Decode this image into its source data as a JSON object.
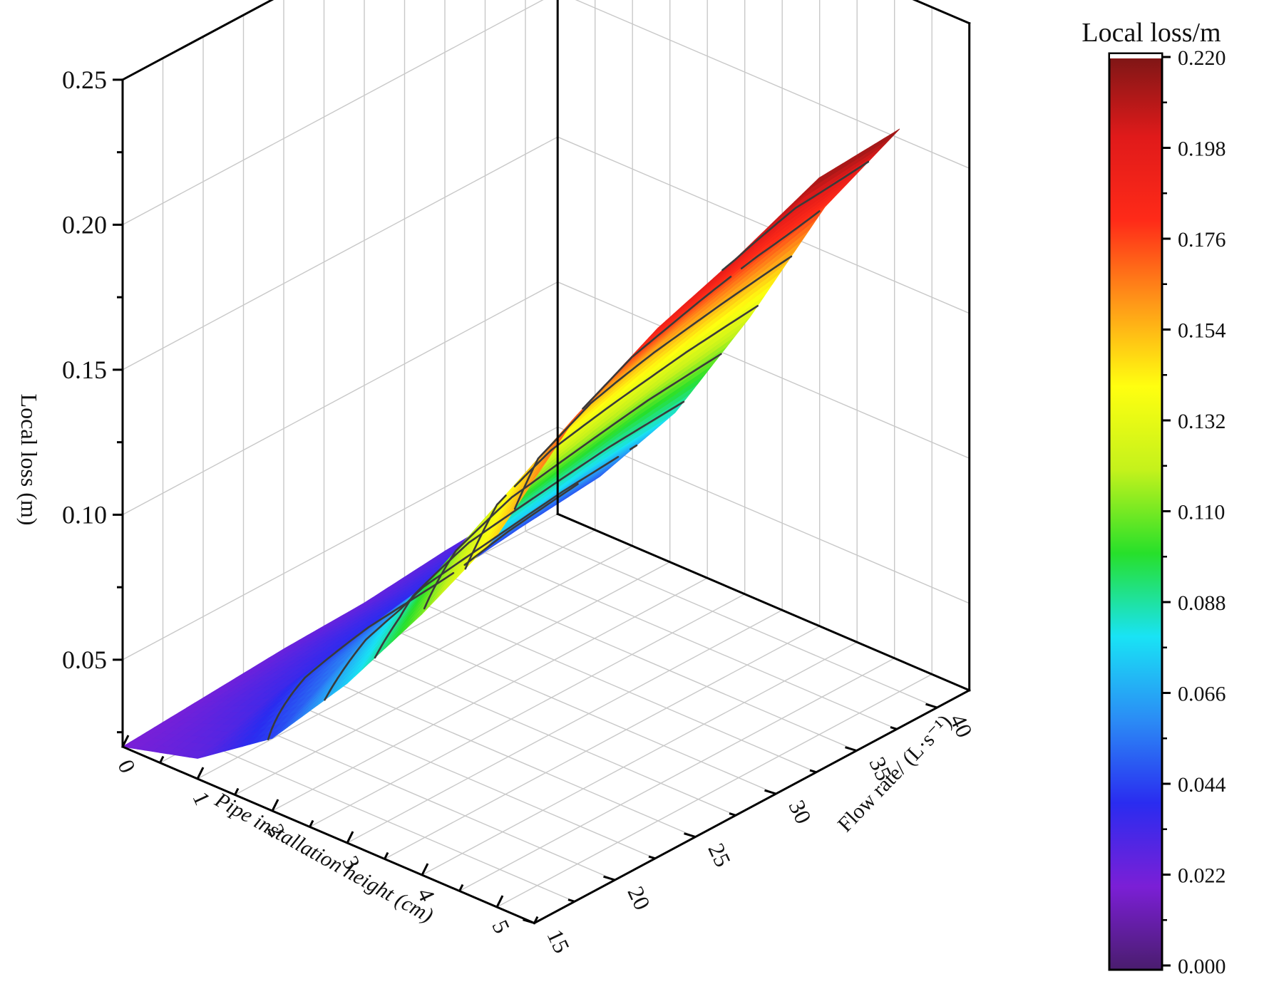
{
  "chart_data": {
    "type": "surface3d",
    "title": "",
    "xlabel": "Pipe installation height (cm)",
    "ylabel": "Flow rate/ (L·s⁻¹)",
    "zlabel": "Local loss (m)",
    "x_ticks": [
      "0",
      "1",
      "2",
      "3",
      "4",
      "5"
    ],
    "y_ticks": [
      "15",
      "20",
      "25",
      "30",
      "35",
      "40"
    ],
    "z_ticks": [
      "0.05",
      "0.10",
      "0.15",
      "0.20",
      "0.25"
    ],
    "xlim": [
      0,
      5.5
    ],
    "ylim": [
      15,
      42
    ],
    "zlim": [
      0.02,
      0.25
    ],
    "grid": true,
    "x": [
      0,
      1,
      2,
      3,
      4,
      5
    ],
    "y": [
      15,
      20,
      25,
      30,
      35,
      40
    ],
    "z": [
      [
        0.02,
        0.027,
        0.045,
        0.075,
        0.11,
        0.148
      ],
      [
        0.022,
        0.035,
        0.06,
        0.095,
        0.135,
        0.175
      ],
      [
        0.024,
        0.04,
        0.07,
        0.108,
        0.15,
        0.19
      ],
      [
        0.025,
        0.043,
        0.075,
        0.115,
        0.16,
        0.2
      ],
      [
        0.028,
        0.047,
        0.08,
        0.122,
        0.168,
        0.212
      ],
      [
        0.03,
        0.05,
        0.083,
        0.127,
        0.176,
        0.214
      ]
    ],
    "colorbar": {
      "title": "Local loss/m",
      "ticks": [
        "0.000",
        "0.022",
        "0.044",
        "0.066",
        "0.088",
        "0.110",
        "0.132",
        "0.154",
        "0.176",
        "0.198",
        "0.220"
      ],
      "range": [
        0,
        0.22
      ],
      "colormap": [
        "#4a1d6e",
        "#7b1fd6",
        "#2a2cf0",
        "#2b8cf5",
        "#19e3f5",
        "#27e02a",
        "#c4f21c",
        "#ffff10",
        "#ff9818",
        "#ff2a18",
        "#e01a1a",
        "#7a1616"
      ]
    },
    "contour_levels": [
      0.044,
      0.066,
      0.088,
      0.11,
      0.132,
      0.154,
      0.176,
      0.198
    ]
  }
}
